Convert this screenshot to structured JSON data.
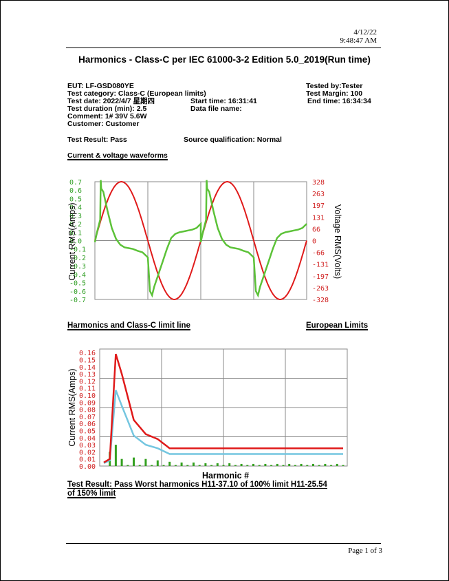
{
  "header": {
    "date": "4/12/22",
    "time": "9:48:47 AM"
  },
  "title": "Harmonics  -  Class-C per IEC 61000-3-2 Edition 5.0_2019(Run time)",
  "info": {
    "eut": "EUT: LF-GSD080YE",
    "tested_by": "Tested by:Tester",
    "test_category": "Test category: Class-C (European limits)",
    "test_margin": "Test Margin: 100",
    "test_date": "Test date: 2022/4/7 星期四",
    "start_time": "Start time: 16:31:41",
    "end_time": "End time: 16:34:34",
    "test_duration": "Test duration (min): 2.5",
    "data_file": "Data file name:",
    "comment": "Comment: 1# 39V 5.6W",
    "customer": "Customer: Customer",
    "test_result": "Test Result: Pass",
    "source_qualification": "Source qualification: Normal"
  },
  "sections": {
    "waveforms": "Current & voltage waveforms",
    "harmonics": "Harmonics and Class-C  limit line",
    "limits": "European Limits"
  },
  "footer_result": {
    "line1": "Test Result: Pass      Worst harmonics H11-37.10 of 100% limit  H11-25.54",
    "line2": "of 150% limit"
  },
  "page_number": "Page 1 of 3",
  "colors": {
    "current": "#5cc238",
    "voltage": "#e01a1a",
    "limit_150": "#e01a1a",
    "limit_100": "#74c6e0",
    "harmonic_bars": "#34a020",
    "current_axis": "#2e9e22",
    "voltage_axis": "#d02020"
  },
  "chart_data": [
    {
      "type": "line",
      "title": "Current & voltage waveforms",
      "ylabel": "Current RMS(Amps)",
      "y2label": "Voltage RMS(Volts)",
      "ylim": [
        -0.7,
        0.7
      ],
      "y2lim": [
        -328,
        328
      ],
      "y_ticks": [
        "0.7",
        "0.6",
        "0.5",
        "0.4",
        "0.3",
        "0.2",
        "0.1",
        "0.0",
        "-0.1",
        "-0.2",
        "-0.3",
        "-0.4",
        "-0.5",
        "-0.6",
        "-0.7"
      ],
      "y2_ticks": [
        "328",
        "263",
        "197",
        "131",
        "66",
        "0",
        "-66",
        "-131",
        "-197",
        "-263",
        "-328"
      ],
      "grid": true,
      "x_divisions": 4,
      "series": [
        {
          "name": "Current",
          "phase": [
            0,
            0.02,
            0.04,
            0.05,
            0.055,
            0.06,
            0.08,
            0.12,
            0.16,
            0.2,
            0.24,
            0.28,
            0.32,
            0.36,
            0.4,
            0.45,
            0.5,
            0.52,
            0.54,
            0.56,
            0.6,
            0.64,
            0.68,
            0.72,
            0.76,
            0.8,
            0.84,
            0.88,
            0.92,
            0.96,
            1.0
          ],
          "values": [
            -0.02,
            0.1,
            0.2,
            0.25,
            0.72,
            0.62,
            0.58,
            0.35,
            0.15,
            0.02,
            -0.05,
            -0.08,
            -0.09,
            -0.1,
            -0.12,
            -0.14,
            -0.2,
            -0.6,
            -0.65,
            -0.55,
            -0.4,
            -0.25,
            -0.1,
            0.03,
            0.08,
            0.1,
            0.11,
            0.12,
            0.13,
            0.15,
            0.2
          ]
        },
        {
          "name": "Voltage",
          "waveform": "sine",
          "amplitude": 328,
          "cycles": 2
        }
      ]
    },
    {
      "type": "line",
      "title": "Harmonics and Class-C  limit line",
      "subtitle": "European Limits",
      "xlabel": "Harmonic #",
      "ylabel": "Current RMS(Amps)",
      "ylim": [
        0,
        0.165
      ],
      "y_ticks": [
        "0.16",
        "0.15",
        "0.14",
        "0.13",
        "0.12",
        "0.11",
        "0.10",
        "0.09",
        "0.08",
        "0.07",
        "0.06",
        "0.05",
        "0.04",
        "0.03",
        "0.02",
        "0.01",
        "0.00"
      ],
      "xlim": [
        0,
        40
      ],
      "grid": true,
      "series": [
        {
          "name": "150% limit",
          "x": [
            0,
            1,
            2,
            3,
            5,
            7,
            9,
            11,
            40
          ],
          "y": [
            0.005,
            0.01,
            0.158,
            0.13,
            0.065,
            0.045,
            0.038,
            0.025,
            0.025
          ]
        },
        {
          "name": "100% limit",
          "x": [
            0,
            1,
            2,
            3,
            5,
            7,
            9,
            11,
            40
          ],
          "y": [
            0.004,
            0.008,
            0.107,
            0.085,
            0.043,
            0.03,
            0.025,
            0.017,
            0.017
          ]
        }
      ],
      "bars": {
        "x": [
          1,
          2,
          3,
          4,
          5,
          6,
          7,
          8,
          9,
          10,
          11,
          12,
          13,
          14,
          15,
          16,
          17,
          18,
          19,
          20,
          21,
          22,
          23,
          24,
          25,
          26,
          27,
          28,
          29,
          30,
          31,
          32,
          33,
          34,
          35,
          36,
          37,
          38,
          39,
          40
        ],
        "y": [
          0.02,
          0.03,
          0.01,
          0.0,
          0.012,
          0.0,
          0.01,
          0.0,
          0.008,
          0.0,
          0.006,
          0.0,
          0.005,
          0.0,
          0.005,
          0.0,
          0.004,
          0.0,
          0.004,
          0.0,
          0.004,
          0.0,
          0.003,
          0.0,
          0.003,
          0.0,
          0.003,
          0.0,
          0.003,
          0.0,
          0.003,
          0.0,
          0.003,
          0.0,
          0.003,
          0.0,
          0.003,
          0.0,
          0.003,
          0.0
        ]
      }
    }
  ]
}
